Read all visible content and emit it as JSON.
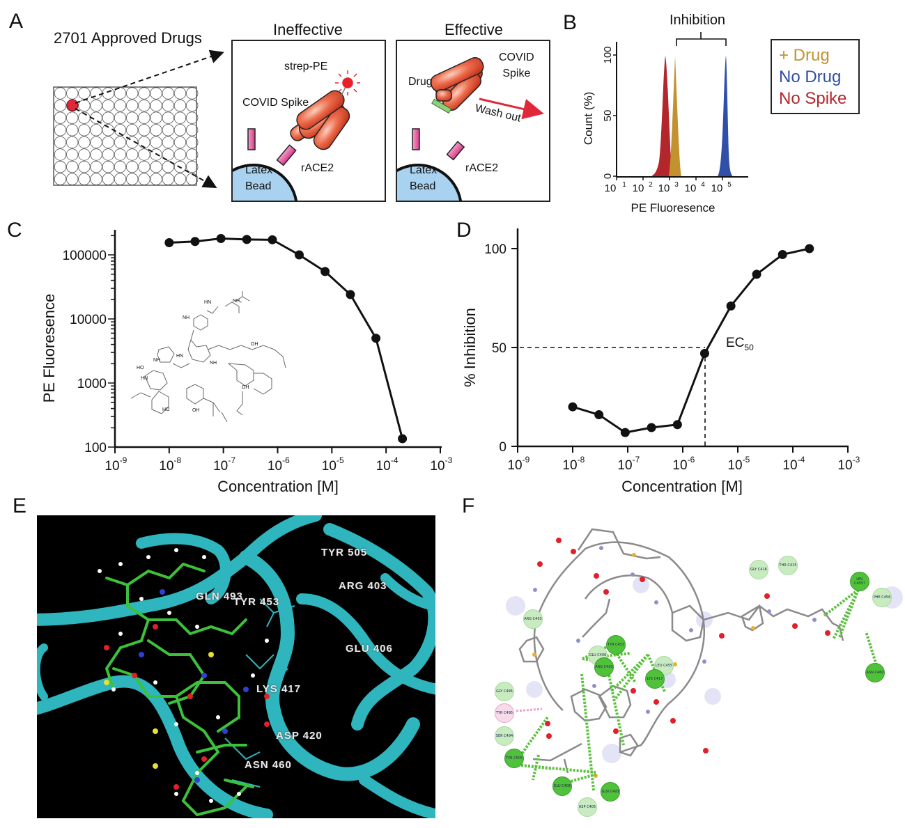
{
  "figure": {
    "panels": {
      "A": {
        "letter": "A",
        "library_label": "2701 Approved Drugs",
        "plate": {
          "rows": 8,
          "cols": 12,
          "highlighted_well": [
            1,
            1
          ],
          "highlight_color": "#e0283a"
        },
        "ineffective": {
          "title": "Ineffective",
          "labels": {
            "reporter": "strep-PE",
            "spike": "COVID Spike",
            "bead_line1": "Latex",
            "bead_line2": "Bead",
            "receptor": "rACE2"
          }
        },
        "effective": {
          "title": "Effective",
          "labels": {
            "spike_line1": "COVID",
            "spike_line2": "Spike",
            "drug": "Drug",
            "wash": "Wash out",
            "bead_line1": "Latex",
            "bead_line2": "Bead",
            "receptor": "rACE2"
          }
        },
        "colors": {
          "bead": "#a8d2ef",
          "receptor": "#e35a9a",
          "spike": "#e8553a",
          "drug": "#8fd07a",
          "reporter": "#e8202a"
        }
      },
      "B": {
        "letter": "B",
        "bracket_label": "Inhibition",
        "legend": [
          {
            "label": "+ Drug",
            "color": "#c3922e"
          },
          {
            "label": "No Drug",
            "color": "#2f4fa8"
          },
          {
            "label": "No Spike",
            "color": "#b3262c"
          }
        ]
      },
      "C": {
        "letter": "C",
        "ylabel": "PE Fluoresence",
        "xlabel": "Concentration [M]"
      },
      "D": {
        "letter": "D",
        "ylabel": "% Inhibition",
        "xlabel": "Concentration [M]",
        "annotation": "EC",
        "annotation_sub": "50"
      },
      "E": {
        "letter": "E",
        "residue_labels": [
          "TYR 505",
          "GLN 493",
          "ARG 403",
          "TYR 453",
          "GLU 406",
          "LYS 417",
          "ASP 420",
          "ASN 460"
        ]
      },
      "F": {
        "letter": "F",
        "residue_bubbles": [
          {
            "label": "GLY C416",
            "strength": "weak"
          },
          {
            "label": "THR C415",
            "strength": "weak"
          },
          {
            "label": "LEU C455? (C455)",
            "strength": "strong"
          },
          {
            "label": "PHE C456",
            "strength": "weak"
          },
          {
            "label": "ASN C460",
            "strength": "strong"
          },
          {
            "label": "ARG C403",
            "strength": "weak"
          },
          {
            "label": "TYR C453",
            "strength": "strong"
          },
          {
            "label": "GLU C406",
            "strength": "weak"
          },
          {
            "label": "ARG C403",
            "strength": "strong"
          },
          {
            "label": "LEU C455",
            "strength": "weak"
          },
          {
            "label": "LYS C417",
            "strength": "strong"
          },
          {
            "label": "GLY C496",
            "strength": "weak"
          },
          {
            "label": "TYR C495",
            "strength": "pink"
          },
          {
            "label": "SER C494",
            "strength": "weak"
          },
          {
            "label": "TYR C505",
            "strength": "strong"
          },
          {
            "label": "GLU C406",
            "strength": "strong"
          },
          {
            "label": "GLN C493",
            "strength": "strong"
          },
          {
            "label": "ASP C405",
            "strength": "weak"
          }
        ]
      }
    }
  },
  "chart_data": [
    {
      "panel": "B",
      "type": "area",
      "title": "",
      "xlabel": "PE Fluoresence",
      "ylabel": "Count  (%)",
      "xscale": "log",
      "xticks": [
        "10^1",
        "10^2",
        "10^3",
        "10^4",
        "10^5"
      ],
      "yticks": [
        "0",
        "50",
        "100"
      ],
      "ylim": [
        0,
        100
      ],
      "series": [
        {
          "name": "No Spike",
          "color": "#b3262c",
          "peak_x": 650,
          "peak_y": 100
        },
        {
          "name": "+ Drug",
          "color": "#c3922e",
          "peak_x": 1500,
          "peak_y": 100
        },
        {
          "name": "No Drug",
          "color": "#2f4fa8",
          "peak_x": 120000,
          "peak_y": 100
        }
      ],
      "annotations": [
        "Inhibition (bracket from + Drug peak to No Drug peak)"
      ]
    },
    {
      "panel": "C",
      "type": "line",
      "title": "",
      "xlabel": "Concentration [M]",
      "ylabel": "PE Fluoresence",
      "xscale": "log",
      "yscale": "log",
      "xlim": [
        1e-09,
        0.001
      ],
      "ylim": [
        100,
        200000
      ],
      "xticks": [
        "10^-9",
        "10^-8",
        "10^-7",
        "10^-6",
        "10^-5",
        "10^-4",
        "10^-3"
      ],
      "yticks": [
        "100",
        "1000",
        "10000",
        "100000"
      ],
      "x": [
        1e-08,
        3e-08,
        9e-08,
        2.7e-07,
        8e-07,
        2.5e-06,
        7.5e-06,
        2.2e-05,
        6.5e-05,
        0.0002
      ],
      "values": [
        155000,
        162000,
        180000,
        174000,
        172000,
        100000,
        55000,
        24000,
        5000,
        135
      ],
      "grid": false
    },
    {
      "panel": "D",
      "type": "line",
      "title": "",
      "xlabel": "Concentration [M]",
      "ylabel": "% Inhibition",
      "xscale": "log",
      "xlim": [
        1e-09,
        0.001
      ],
      "ylim": [
        0,
        100
      ],
      "xticks": [
        "10^-9",
        "10^-8",
        "10^-7",
        "10^-6",
        "10^-5",
        "10^-4",
        "10^-3"
      ],
      "yticks": [
        "0",
        "50",
        "100"
      ],
      "x": [
        1e-08,
        3e-08,
        9e-08,
        2.7e-07,
        8e-07,
        2.5e-06,
        7.5e-06,
        2.2e-05,
        6.5e-05,
        0.0002
      ],
      "values": [
        20,
        16,
        7,
        9.5,
        11,
        47,
        71,
        87,
        97,
        100
      ],
      "annotations": [
        {
          "text": "EC50",
          "x": 2.7e-06,
          "y": 50
        }
      ],
      "grid": false
    }
  ]
}
